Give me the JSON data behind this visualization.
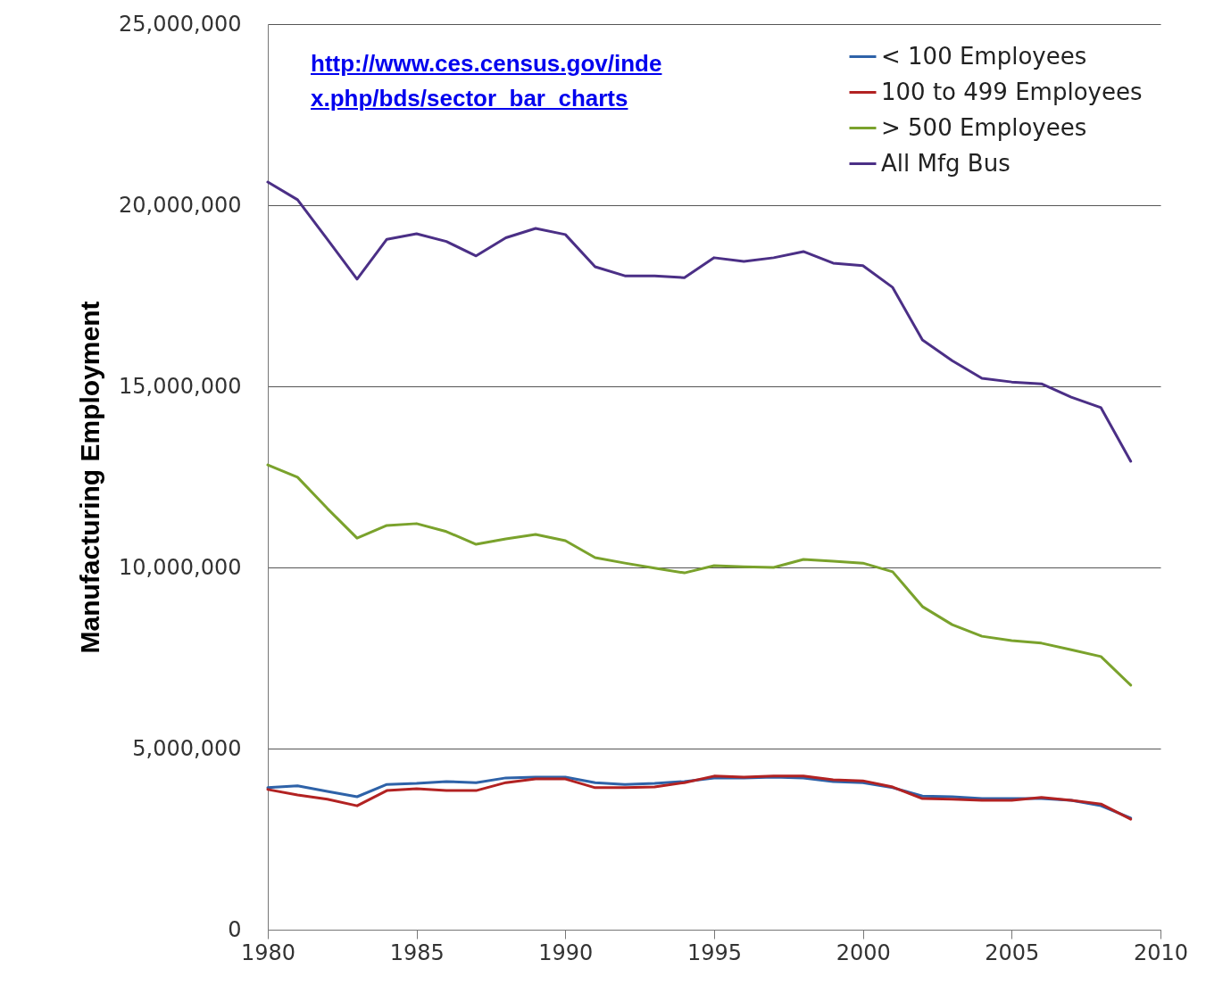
{
  "chart_data": {
    "type": "line",
    "ylabel": "Manufacturing Employment",
    "annotations": [
      "http://www.ces.census.gov/index.php/bds/sector_bar_charts"
    ],
    "x": [
      1980,
      1981,
      1982,
      1983,
      1984,
      1985,
      1986,
      1987,
      1988,
      1989,
      1990,
      1991,
      1992,
      1993,
      1994,
      1995,
      1996,
      1997,
      1998,
      1999,
      2000,
      2001,
      2002,
      2003,
      2004,
      2005,
      2006,
      2007,
      2008,
      2009
    ],
    "series": [
      {
        "name": "< 100 Employees",
        "color": "#2e62a8",
        "values": [
          3920000,
          3970000,
          3820000,
          3670000,
          4010000,
          4040000,
          4090000,
          4060000,
          4190000,
          4210000,
          4210000,
          4060000,
          4010000,
          4040000,
          4090000,
          4190000,
          4190000,
          4210000,
          4190000,
          4090000,
          4060000,
          3920000,
          3690000,
          3670000,
          3620000,
          3620000,
          3620000,
          3570000,
          3420000,
          3080000
        ]
      },
      {
        "name": "100 to 499 Employees",
        "color": "#b22222",
        "values": [
          3870000,
          3720000,
          3600000,
          3420000,
          3840000,
          3890000,
          3840000,
          3840000,
          4060000,
          4160000,
          4160000,
          3920000,
          3920000,
          3940000,
          4060000,
          4240000,
          4210000,
          4240000,
          4240000,
          4140000,
          4110000,
          3940000,
          3620000,
          3600000,
          3570000,
          3570000,
          3650000,
          3570000,
          3470000,
          3050000
        ]
      },
      {
        "name": "> 500 Employees",
        "color": "#7aa22c",
        "values": [
          12830000,
          12490000,
          11630000,
          10810000,
          11160000,
          11210000,
          10990000,
          10640000,
          10790000,
          10910000,
          10740000,
          10270000,
          10120000,
          9980000,
          9850000,
          10050000,
          10020000,
          10000000,
          10220000,
          10170000,
          10120000,
          9880000,
          8920000,
          8420000,
          8100000,
          7980000,
          7910000,
          7730000,
          7540000,
          6750000
        ]
      },
      {
        "name": "All Mfg Bus",
        "color": "#4b2f86",
        "values": [
          20640000,
          20150000,
          19060000,
          17960000,
          19060000,
          19210000,
          19000000,
          18600000,
          19100000,
          19360000,
          19190000,
          18300000,
          18050000,
          18050000,
          18000000,
          18550000,
          18450000,
          18550000,
          18720000,
          18400000,
          18330000,
          17730000,
          16280000,
          15710000,
          15220000,
          15120000,
          15070000,
          14700000,
          14410000,
          12930000
        ]
      }
    ],
    "xlim": [
      1980,
      2010
    ],
    "xticks": [
      1980,
      1985,
      1990,
      1995,
      2000,
      2005,
      2010
    ],
    "ylim": [
      0,
      25000000
    ],
    "yticks": [
      0,
      {
        "value": 5000000,
        "label": "5,000,000"
      },
      {
        "value": 10000000,
        "label": "10,000,000"
      },
      {
        "value": 15000000,
        "label": "15,000,000"
      },
      {
        "value": 20000000,
        "label": "20,000,000"
      },
      {
        "value": 25000000,
        "label": "25,000,000"
      }
    ],
    "grid": "y",
    "legend": "top right",
    "marker": "none",
    "line_style": "solid"
  }
}
